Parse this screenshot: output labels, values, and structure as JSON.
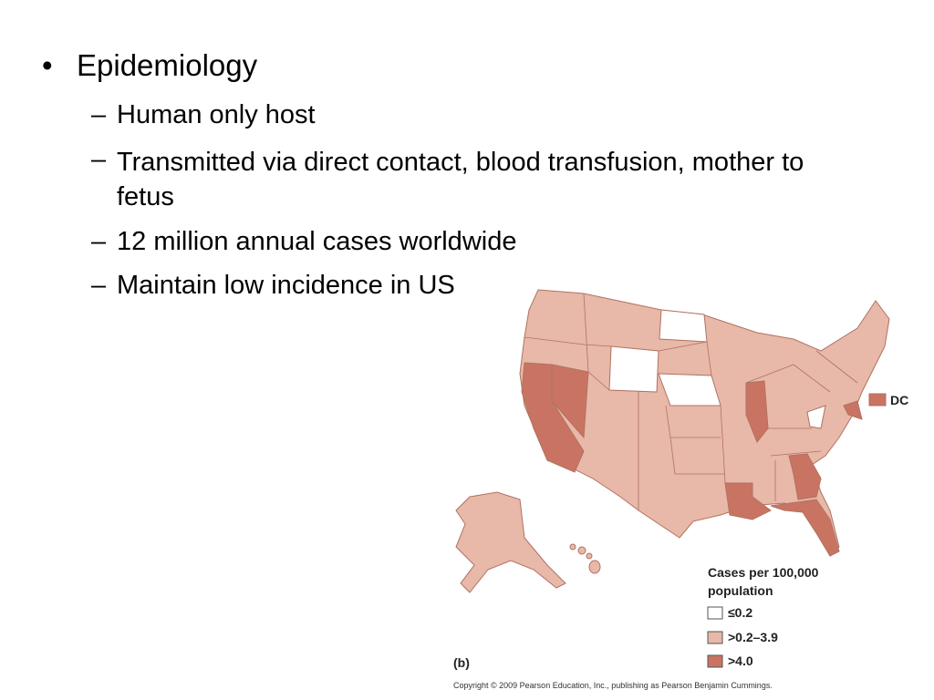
{
  "bullets": [
    {
      "text": "Epidemiology",
      "sub": [
        "Human only host",
        "Transmitted via direct contact, blood transfusion, mother to fetus",
        "12 million annual cases worldwide",
        "Maintain low incidence in US"
      ]
    }
  ],
  "map": {
    "inset_label": "DC",
    "panel_label": "(b)",
    "legend": {
      "title": "Cases per 100,000 population",
      "items": [
        "≤0.2",
        ">0.2–3.9",
        ">4.0"
      ]
    },
    "copyright": "Copyright © 2009 Pearson Education, Inc., publishing as Pearson Benjamin Cummings."
  }
}
